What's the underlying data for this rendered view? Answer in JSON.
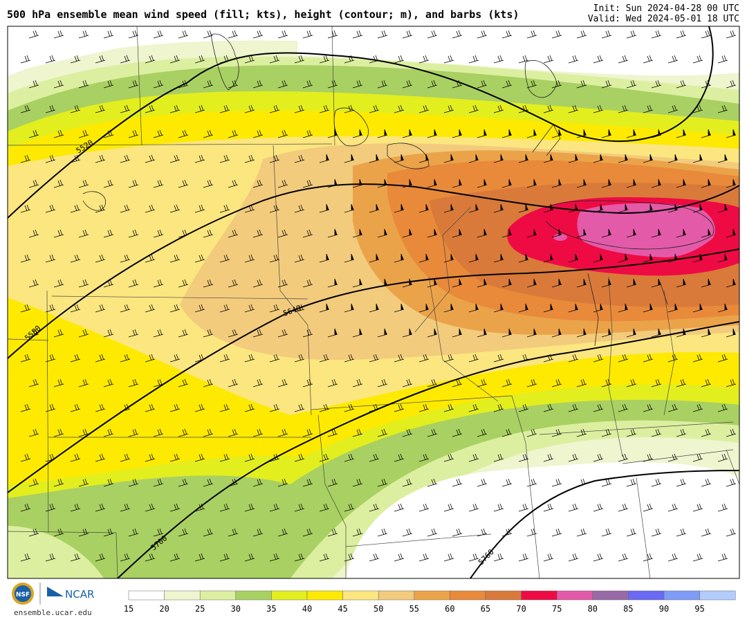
{
  "header": {
    "title": "500 hPa ensemble mean wind speed (fill; kts), height (contour; m), and barbs (kts)",
    "init": "Init: Sun 2024-04-28 00 UTC",
    "valid": "Valid: Wed 2024-05-01 18 UTC"
  },
  "logos": {
    "nsf": "NSF",
    "ncar": "NCAR",
    "site": "ensemble.ucar.edu"
  },
  "contours": {
    "labels": [
      "5520",
      "5580",
      "5640",
      "5700",
      "5760"
    ]
  },
  "colorbar": {
    "ticks": [
      "15",
      "20",
      "25",
      "30",
      "35",
      "40",
      "45",
      "50",
      "55",
      "60",
      "65",
      "70",
      "75",
      "80",
      "85",
      "90",
      "95"
    ],
    "colors": [
      "#ffffff",
      "#eef5cf",
      "#dcefa0",
      "#a9d062",
      "#e3ee1e",
      "#fdea00",
      "#fbe67f",
      "#f2cb7c",
      "#eba34a",
      "#e88a3a",
      "#d97a3a",
      "#ee0b44",
      "#e35aa9",
      "#996aa8",
      "#6a6af4",
      "#7f9bf8",
      "#b3ccfa"
    ],
    "unit": "kts"
  },
  "colors": {
    "jet_core": "#ee0b44",
    "jet_inner": "#e35aa9",
    "contour": "#000000"
  }
}
